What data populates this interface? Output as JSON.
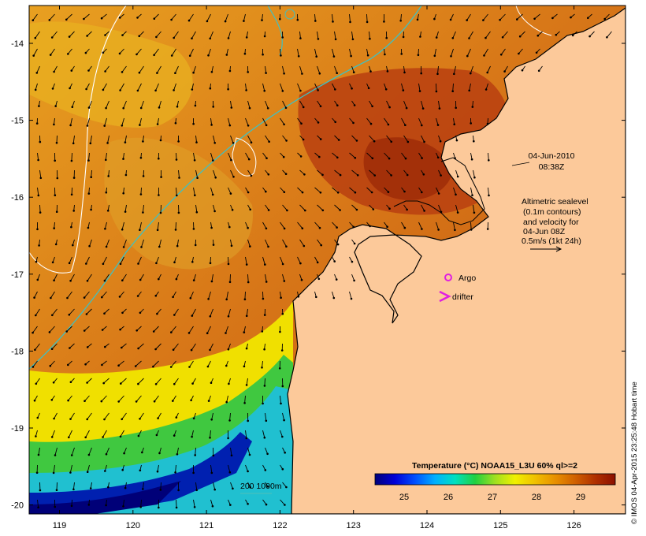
{
  "map": {
    "x_axis": {
      "ticks": [
        "119",
        "120",
        "121",
        "122",
        "123",
        "124",
        "125",
        "126"
      ]
    },
    "y_axis": {
      "ticks": [
        "-14",
        "-15",
        "-16",
        "-17",
        "-18",
        "-19",
        "-20"
      ]
    },
    "date": "04-Jun-2010",
    "time": "08:38Z",
    "altimetry_note": [
      "Altimetric sealevel",
      "(0.1m contours)",
      "and velocity for",
      "04-Jun 08Z",
      "0.5m/s (1kt 24h)"
    ],
    "legend": {
      "argo_label": "Argo",
      "drifter_label": "drifter"
    },
    "isobath_label": "200  1000m",
    "colorbar": {
      "title": "Temperature (°C) NOAA15_L3U 60% ql>=2",
      "ticks": [
        "25",
        "26",
        "27",
        "28",
        "29"
      ],
      "colors": [
        "#00007a",
        "#0000d8",
        "#0050ff",
        "#00b0ff",
        "#00e0c0",
        "#20d040",
        "#a0e020",
        "#f0f000",
        "#f0c000",
        "#e89000",
        "#d06000",
        "#b03000",
        "#8c1000"
      ]
    },
    "copyright": "© IMOS 04-Apr-2015 23:25:48 Hobart time",
    "colors": {
      "land": "#fcc99a",
      "coast": "#000000",
      "isobath": "#40c0c0",
      "contour": "#ffffff",
      "argo": "#e020e0"
    }
  }
}
